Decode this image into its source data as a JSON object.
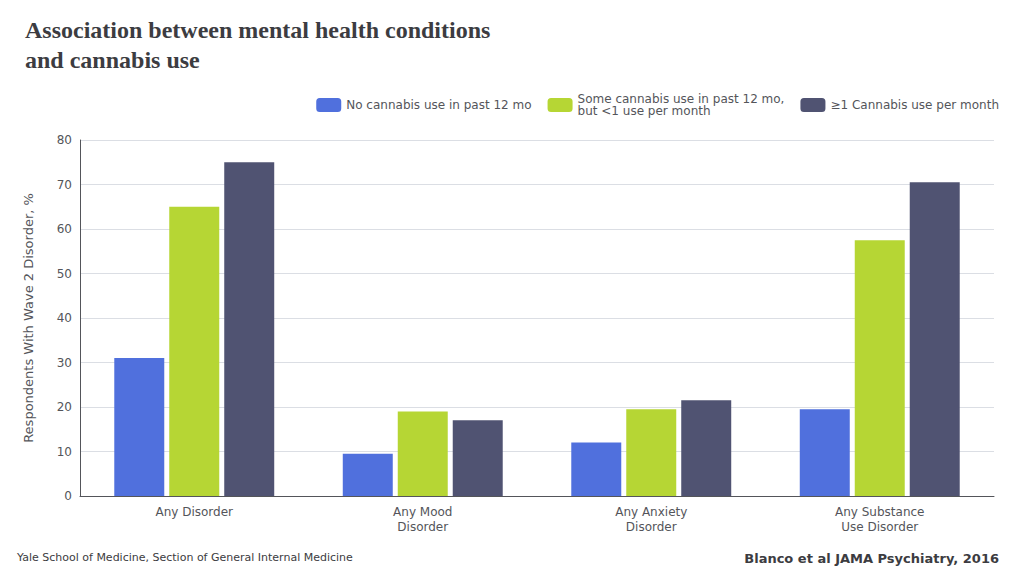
{
  "chart_data": {
    "type": "bar",
    "title": "Association between mental health conditions\nand cannabis use",
    "categories": [
      "Any Disorder",
      "Any Mood\nDisorder",
      "Any Anxiety\nDisorder",
      "Any Substance\nUse Disorder"
    ],
    "series": [
      {
        "name": "No cannabis use in past 12 mo",
        "values": [
          31,
          9.5,
          12,
          19.5
        ]
      },
      {
        "name": "Some cannabis use in past 12 mo,\nbut <1 use per month",
        "values": [
          65,
          19,
          19.5,
          57.5
        ]
      },
      {
        "name": "≥1 Cannabis use per month",
        "values": [
          75,
          17,
          21.5,
          70.5
        ]
      }
    ],
    "ylabel": "Respondents With Wave 2 Disorder, %",
    "ylim": [
      0,
      80
    ],
    "yticks": [
      0,
      10,
      20,
      30,
      40,
      50,
      60,
      70,
      80
    ],
    "grid": true,
    "legend": "upper right",
    "annotations": [
      "Yale School of Medicine, Section of General Internal Medicine",
      "Blanco et al JAMA Psychiatry, 2016"
    ]
  }
}
